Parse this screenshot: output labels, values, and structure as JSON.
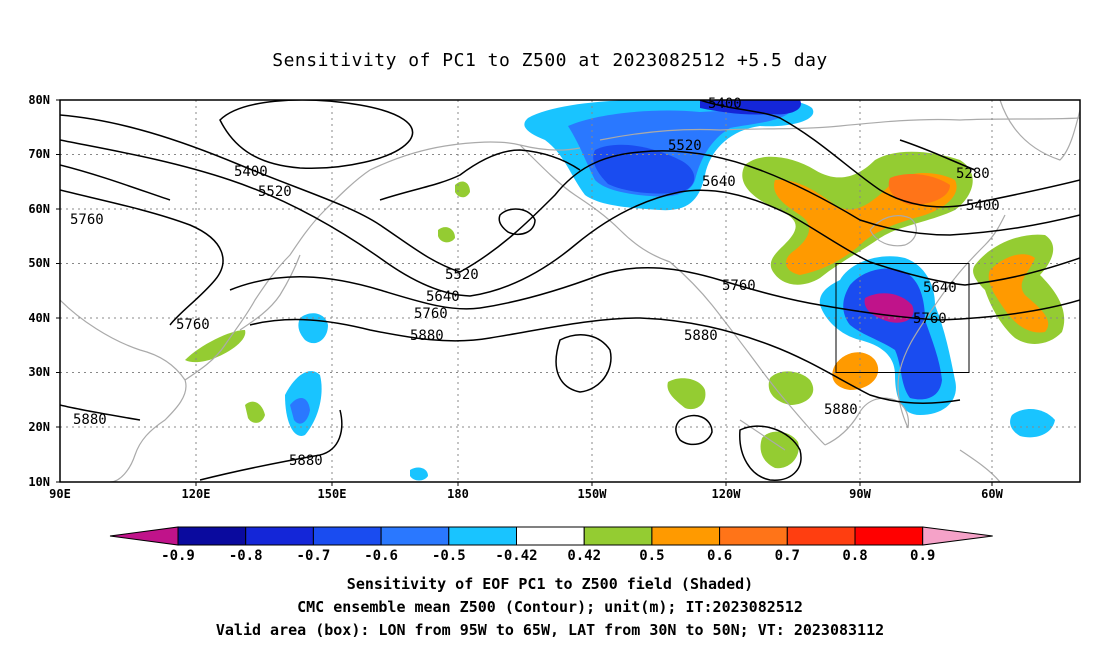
{
  "title": "Sensitivity of PC1 to Z500 at 2023082512 +5.5 day",
  "map": {
    "lat_labels": [
      "80N",
      "70N",
      "60N",
      "50N",
      "40N",
      "30N",
      "20N",
      "10N"
    ],
    "lon_labels": [
      "90E",
      "120E",
      "150E",
      "180",
      "150W",
      "120W",
      "90W",
      "60W"
    ],
    "contour_labels": [
      {
        "key": "c5400a",
        "text": "5400"
      },
      {
        "key": "c5520a",
        "text": "5520"
      },
      {
        "key": "c5760a",
        "text": "5760"
      },
      {
        "key": "c5760b",
        "text": "5760"
      },
      {
        "key": "c5880a",
        "text": "5880"
      },
      {
        "key": "c5880b",
        "text": "5880"
      },
      {
        "key": "c5520b",
        "text": "5520"
      },
      {
        "key": "c5640a",
        "text": "5640"
      },
      {
        "key": "c5760c",
        "text": "5760"
      },
      {
        "key": "c5880c",
        "text": "5880"
      },
      {
        "key": "c5400b",
        "text": "5400"
      },
      {
        "key": "c5520c",
        "text": "5520"
      },
      {
        "key": "c5640b",
        "text": "5640"
      },
      {
        "key": "c5760d",
        "text": "5760"
      },
      {
        "key": "c5880d",
        "text": "5880"
      },
      {
        "key": "c5880e",
        "text": "5880"
      },
      {
        "key": "c5280",
        "text": "5280"
      },
      {
        "key": "c5400c",
        "text": "5400"
      },
      {
        "key": "c5640c",
        "text": "5640"
      },
      {
        "key": "c5760e",
        "text": "5760"
      }
    ]
  },
  "colorbar": {
    "labels": [
      "-0.9",
      "-0.8",
      "-0.7",
      "-0.6",
      "-0.5",
      "-0.42",
      "0.42",
      "0.5",
      "0.6",
      "0.7",
      "0.8",
      "0.9"
    ],
    "colors": {
      "low_arrow": "#c0138a",
      "bins": [
        "#0a0a9e",
        "#1426d8",
        "#1a4cf0",
        "#2a78ff",
        "#19c4ff",
        "#ffffff",
        "#94cc32",
        "#ff9a00",
        "#ff7418",
        "#ff3e10",
        "#ff0000"
      ],
      "high_arrow": "#f5a2c8"
    }
  },
  "captions": [
    "Sensitivity of EOF PC1 to Z500 field (Shaded)",
    "CMC ensemble mean Z500 (Contour); unit(m); IT:2023082512",
    "Valid area (box): LON from 95W to 65W, LAT from 30N to 50N; VT: 2023083112"
  ]
}
